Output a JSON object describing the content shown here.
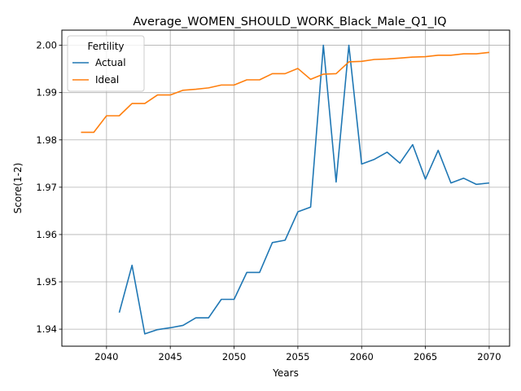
{
  "chart_data": {
    "type": "line",
    "title": "Average_WOMEN_SHOULD_WORK_Black_Male_Q1_IQ",
    "xlabel": "Years",
    "ylabel": "Score(1-2)",
    "xlim": [
      2036.5,
      2071.6
    ],
    "ylim": [
      1.9364,
      2.0032
    ],
    "xticks": [
      2040,
      2045,
      2050,
      2055,
      2060,
      2065,
      2070
    ],
    "xtick_labels": [
      "2040",
      "2045",
      "2050",
      "2055",
      "2060",
      "2065",
      "2070"
    ],
    "yticks": [
      1.94,
      1.95,
      1.96,
      1.97,
      1.98,
      1.99,
      2.0
    ],
    "ytick_labels": [
      "1.94",
      "1.95",
      "1.96",
      "1.97",
      "1.98",
      "1.99",
      "2.00"
    ],
    "grid": true,
    "legend": {
      "title": "Fertility",
      "placement": "top-left"
    },
    "series": [
      {
        "name": "Actual",
        "color": "#1f77b4",
        "x": [
          2041,
          2042,
          2043,
          2044,
          2045,
          2046,
          2047,
          2048,
          2049,
          2050,
          2051,
          2052,
          2053,
          2054,
          2055,
          2056,
          2057,
          2058,
          2059,
          2060,
          2061,
          2062,
          2063,
          2064,
          2065,
          2066,
          2067,
          2068,
          2069,
          2070
        ],
        "values": [
          1.9435,
          1.9535,
          1.939,
          1.9399,
          1.9403,
          1.9408,
          1.9424,
          1.9424,
          1.9463,
          1.9463,
          1.952,
          1.952,
          1.9583,
          1.9588,
          1.9648,
          1.9658,
          2.0,
          1.9711,
          2.0,
          1.9749,
          1.9759,
          1.9774,
          1.9751,
          1.979,
          1.9717,
          1.9778,
          1.9709,
          1.9719,
          1.9706,
          1.9709
        ]
      },
      {
        "name": "Ideal",
        "color": "#ff7f0e",
        "x": [
          2038,
          2039,
          2040,
          2041,
          2042,
          2043,
          2044,
          2045,
          2046,
          2047,
          2048,
          2049,
          2050,
          2051,
          2052,
          2053,
          2054,
          2055,
          2056,
          2057,
          2058,
          2059,
          2060,
          2061,
          2062,
          2063,
          2064,
          2065,
          2066,
          2067,
          2068,
          2069,
          2070
        ],
        "values": [
          1.9816,
          1.9816,
          1.9851,
          1.9851,
          1.9877,
          1.9877,
          1.9895,
          1.9895,
          1.9905,
          1.9907,
          1.991,
          1.9916,
          1.9916,
          1.9927,
          1.9927,
          1.994,
          1.994,
          1.9951,
          1.9928,
          1.9939,
          1.994,
          1.9965,
          1.9966,
          1.997,
          1.9971,
          1.9973,
          1.9975,
          1.9976,
          1.9979,
          1.9979,
          1.9982,
          1.9982,
          1.9985
        ]
      }
    ]
  }
}
